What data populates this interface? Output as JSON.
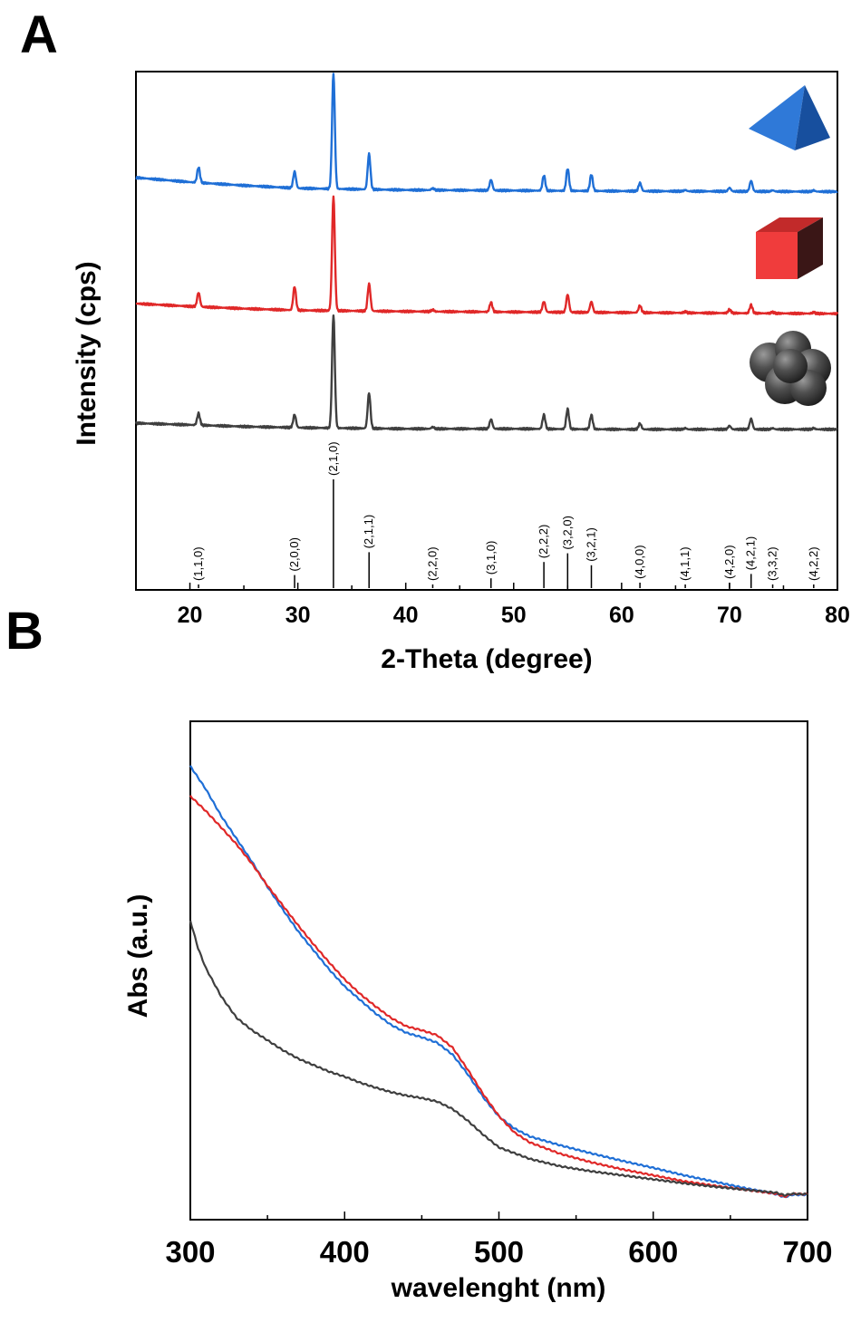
{
  "figure": {
    "panel_a_label": "A",
    "panel_b_label": "B"
  },
  "chart_data": [
    {
      "type": "line",
      "panel": "A",
      "xlabel": "2-Theta (degree)",
      "ylabel": "Intensity (cps)",
      "xlim": [
        15,
        80
      ],
      "xticks": [
        20,
        30,
        40,
        50,
        60,
        70,
        80
      ],
      "yticks_shown": false,
      "legend": "icons on the right (pyramid, cube, sphere cluster)",
      "peak_positions": [
        20.8,
        29.7,
        33.3,
        36.6,
        42.5,
        47.9,
        52.8,
        55.0,
        57.2,
        61.7,
        65.9,
        70.0,
        72.0,
        74.0,
        77.8
      ],
      "series": [
        {
          "color": "#1f6fd6",
          "icon": "pyramid-icon",
          "baseline": [
            [
              15,
              88
            ],
            [
              20,
              80
            ],
            [
              25,
              74
            ],
            [
              30,
              69
            ],
            [
              40,
              66
            ],
            [
              50,
              65
            ],
            [
              60,
              64
            ],
            [
              80,
              63
            ]
          ],
          "peak_heights": [
            13,
            14,
            98,
            30,
            1.5,
            9,
            13,
            19,
            14,
            7,
            1,
            3,
            9,
            1,
            1
          ]
        },
        {
          "color": "#e02828",
          "icon": "cube-icon",
          "baseline": [
            [
              15,
              53
            ],
            [
              20,
              48
            ],
            [
              25,
              44
            ],
            [
              30,
              41
            ],
            [
              40,
              39
            ],
            [
              50,
              38
            ],
            [
              60,
              37
            ],
            [
              80,
              35
            ]
          ],
          "peak_heights": [
            12,
            20,
            97,
            23,
            1.5,
            8,
            9,
            15,
            9,
            6,
            1,
            3,
            7,
            1,
            1
          ]
        },
        {
          "color": "#3f3f3f",
          "icon": "sphere-cluster-icon",
          "baseline": [
            [
              15,
              18
            ],
            [
              20,
              15
            ],
            [
              25,
              12
            ],
            [
              30,
              10
            ],
            [
              40,
              8
            ],
            [
              50,
              8
            ],
            [
              60,
              7
            ],
            [
              80,
              7
            ]
          ],
          "peak_heights": [
            10,
            11,
            96,
            30,
            1.5,
            8,
            12,
            17,
            12,
            5,
            1,
            3,
            9,
            1,
            1
          ]
        }
      ],
      "reference_pattern": {
        "labels": [
          "(1,1,0)",
          "(2,0,0)",
          "(2,1,0)",
          "(2,1,1)",
          "(2,2,0)",
          "(3,1,0)",
          "(2,2,2)",
          "(3,2,0)",
          "(3,2,1)",
          "(4,0,0)",
          "(4,1,1)",
          "(4,2,0)",
          "(4,2,1)",
          "(3,3,2)",
          "(4,2,2)"
        ],
        "positions": [
          20.8,
          29.7,
          33.3,
          36.6,
          42.5,
          47.9,
          52.8,
          55.0,
          57.2,
          61.7,
          65.9,
          70.0,
          72.0,
          74.0,
          77.8
        ],
        "heights": [
          3,
          12,
          100,
          33,
          1,
          9,
          24,
          32,
          21,
          5,
          1,
          5,
          13,
          1,
          1
        ]
      }
    },
    {
      "type": "line",
      "panel": "B",
      "xlabel": "wavelenght (nm)",
      "ylabel": "Abs (a.u.)",
      "xlim": [
        300,
        700
      ],
      "xticks": [
        300,
        400,
        500,
        600,
        700
      ],
      "yticks_shown": false,
      "series": [
        {
          "color": "#1f6fd6",
          "points": [
            [
              300,
              0.91
            ],
            [
              310,
              0.864
            ],
            [
              320,
              0.81
            ],
            [
              330,
              0.764
            ],
            [
              340,
              0.718
            ],
            [
              350,
              0.668
            ],
            [
              360,
              0.622
            ],
            [
              370,
              0.578
            ],
            [
              380,
              0.54
            ],
            [
              390,
              0.502
            ],
            [
              400,
              0.468
            ],
            [
              410,
              0.441
            ],
            [
              420,
              0.414
            ],
            [
              430,
              0.391
            ],
            [
              440,
              0.375
            ],
            [
              450,
              0.366
            ],
            [
              460,
              0.355
            ],
            [
              470,
              0.331
            ],
            [
              480,
              0.291
            ],
            [
              490,
              0.245
            ],
            [
              500,
              0.207
            ],
            [
              510,
              0.183
            ],
            [
              520,
              0.167
            ],
            [
              540,
              0.149
            ],
            [
              560,
              0.133
            ],
            [
              580,
              0.118
            ],
            [
              600,
              0.104
            ],
            [
              620,
              0.089
            ],
            [
              640,
              0.076
            ],
            [
              660,
              0.063
            ],
            [
              680,
              0.051
            ],
            [
              685,
              0.045
            ],
            [
              690,
              0.05
            ],
            [
              700,
              0.05
            ]
          ]
        },
        {
          "color": "#e02828",
          "points": [
            [
              300,
              0.85
            ],
            [
              310,
              0.82
            ],
            [
              320,
              0.787
            ],
            [
              330,
              0.753
            ],
            [
              340,
              0.714
            ],
            [
              350,
              0.67
            ],
            [
              360,
              0.63
            ],
            [
              370,
              0.59
            ],
            [
              380,
              0.552
            ],
            [
              390,
              0.516
            ],
            [
              400,
              0.482
            ],
            [
              410,
              0.453
            ],
            [
              420,
              0.428
            ],
            [
              430,
              0.405
            ],
            [
              440,
              0.388
            ],
            [
              450,
              0.38
            ],
            [
              460,
              0.37
            ],
            [
              470,
              0.345
            ],
            [
              480,
              0.3
            ],
            [
              490,
              0.251
            ],
            [
              500,
              0.208
            ],
            [
              510,
              0.175
            ],
            [
              520,
              0.155
            ],
            [
              540,
              0.132
            ],
            [
              560,
              0.115
            ],
            [
              580,
              0.101
            ],
            [
              600,
              0.089
            ],
            [
              620,
              0.077
            ],
            [
              640,
              0.068
            ],
            [
              660,
              0.06
            ],
            [
              680,
              0.052
            ],
            [
              685,
              0.046
            ],
            [
              690,
              0.052
            ],
            [
              700,
              0.051
            ]
          ]
        },
        {
          "color": "#3f3f3f",
          "points": [
            [
              300,
              0.6
            ],
            [
              305,
              0.545
            ],
            [
              310,
              0.505
            ],
            [
              320,
              0.448
            ],
            [
              330,
              0.405
            ],
            [
              340,
              0.38
            ],
            [
              350,
              0.36
            ],
            [
              360,
              0.34
            ],
            [
              370,
              0.323
            ],
            [
              380,
              0.31
            ],
            [
              390,
              0.297
            ],
            [
              400,
              0.287
            ],
            [
              410,
              0.275
            ],
            [
              420,
              0.265
            ],
            [
              430,
              0.256
            ],
            [
              440,
              0.249
            ],
            [
              450,
              0.244
            ],
            [
              460,
              0.237
            ],
            [
              470,
              0.222
            ],
            [
              480,
              0.198
            ],
            [
              490,
              0.17
            ],
            [
              500,
              0.145
            ],
            [
              520,
              0.122
            ],
            [
              540,
              0.107
            ],
            [
              560,
              0.097
            ],
            [
              580,
              0.089
            ],
            [
              600,
              0.081
            ],
            [
              620,
              0.073
            ],
            [
              640,
              0.066
            ],
            [
              660,
              0.06
            ],
            [
              680,
              0.054
            ],
            [
              685,
              0.049
            ],
            [
              690,
              0.052
            ],
            [
              700,
              0.051
            ]
          ]
        }
      ]
    }
  ]
}
